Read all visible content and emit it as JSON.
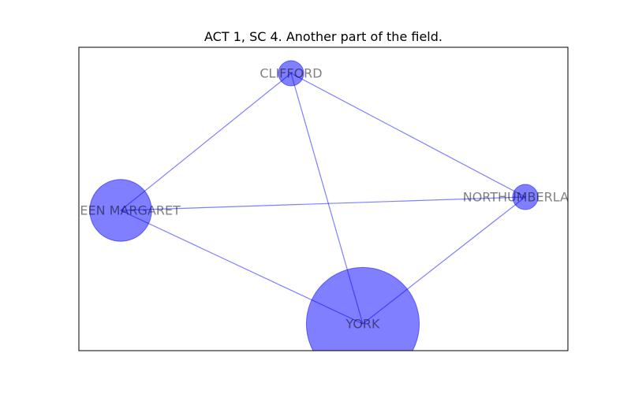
{
  "figure": {
    "title": "ACT 1, SC 4. Another part of the field."
  },
  "graph": {
    "node_color": "#0000ff",
    "edge_color": "#0000ff",
    "label_color": "#000000",
    "nodes": [
      {
        "id": "CLIFFORD",
        "label": "CLIFFORD",
        "weight": 1
      },
      {
        "id": "QUEEN_MARGARET",
        "label": "QUEEN MARGARET",
        "weight": 6
      },
      {
        "id": "NORTHUMBERLAND",
        "label": "NORTHUMBERLAND",
        "weight": 1
      },
      {
        "id": "YORK",
        "label": "YORK",
        "weight": 20
      }
    ],
    "edges": [
      {
        "source": "CLIFFORD",
        "target": "QUEEN_MARGARET"
      },
      {
        "source": "CLIFFORD",
        "target": "NORTHUMBERLAND"
      },
      {
        "source": "CLIFFORD",
        "target": "YORK"
      },
      {
        "source": "QUEEN_MARGARET",
        "target": "NORTHUMBERLAND"
      },
      {
        "source": "QUEEN_MARGARET",
        "target": "YORK"
      },
      {
        "source": "NORTHUMBERLAND",
        "target": "YORK"
      }
    ]
  }
}
